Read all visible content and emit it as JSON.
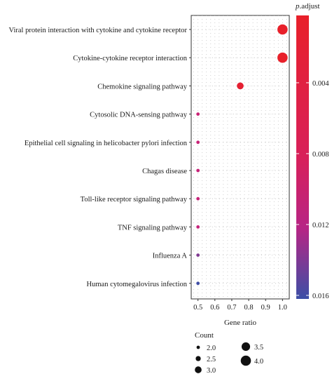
{
  "chart_data": {
    "type": "scatter",
    "title": "",
    "xlabel": "Gene ratio",
    "ylabel": "",
    "xlim": [
      0.46,
      1.04
    ],
    "xticks": [
      "0.5",
      "0.6",
      "0.7",
      "0.8",
      "0.9",
      "1.0"
    ],
    "xtick_values": [
      0.5,
      0.6,
      0.7,
      0.8,
      0.9,
      1.0
    ],
    "grid": true,
    "categories": [
      "Viral protein interaction with cytokine and cytokine receptor",
      "Cytokine-cytokine receptor interaction",
      "Chemokine signaling pathway",
      "Cytosolic DNA-sensing pathway",
      "Epithelial cell signaling in helicobacter pylori infection",
      "Chagas disease",
      "Toll-like receptor signaling pathway",
      "TNF signaling pathway",
      "Influenza A",
      "Human cytomegalovirus infection"
    ],
    "points": [
      {
        "term": "Viral protein interaction with cytokine and cytokine receptor",
        "gene_ratio": 1.0,
        "count": 4,
        "p_adjust": 0.0002
      },
      {
        "term": "Cytokine-cytokine receptor interaction",
        "gene_ratio": 1.0,
        "count": 4,
        "p_adjust": 0.0002
      },
      {
        "term": "Chemokine signaling pathway",
        "gene_ratio": 0.75,
        "count": 3,
        "p_adjust": 0.0011
      },
      {
        "term": "Cytosolic DNA-sensing pathway",
        "gene_ratio": 0.5,
        "count": 2,
        "p_adjust": 0.0085
      },
      {
        "term": "Epithelial cell signaling in helicobacter pylori infection",
        "gene_ratio": 0.5,
        "count": 2,
        "p_adjust": 0.0087
      },
      {
        "term": "Chagas disease",
        "gene_ratio": 0.5,
        "count": 2,
        "p_adjust": 0.0089
      },
      {
        "term": "Toll-like receptor signaling pathway",
        "gene_ratio": 0.5,
        "count": 2,
        "p_adjust": 0.0089
      },
      {
        "term": "TNF signaling pathway",
        "gene_ratio": 0.5,
        "count": 2,
        "p_adjust": 0.0091
      },
      {
        "term": "Influenza A",
        "gene_ratio": 0.5,
        "count": 2,
        "p_adjust": 0.0127
      },
      {
        "term": "Human cytomegalovirus infection",
        "gene_ratio": 0.5,
        "count": 2,
        "p_adjust": 0.016
      }
    ],
    "color_legend": {
      "title_italic": "p",
      "title_rest": ".adjust",
      "ticks": [
        "0.004",
        "0.008",
        "0.012",
        "0.016"
      ],
      "tick_values": [
        0.004,
        0.008,
        0.012,
        0.016
      ],
      "range": [
        0.0002,
        0.0162
      ],
      "low_color": "#e8202a",
      "mid_color": "#c7237a",
      "high_color": "#3c4fa6"
    },
    "size_legend": {
      "title": "Count",
      "labels": [
        "2.0",
        "2.5",
        "3.0",
        "3.5",
        "4.0"
      ],
      "values": [
        2.0,
        2.5,
        3.0,
        3.5,
        4.0
      ]
    }
  }
}
